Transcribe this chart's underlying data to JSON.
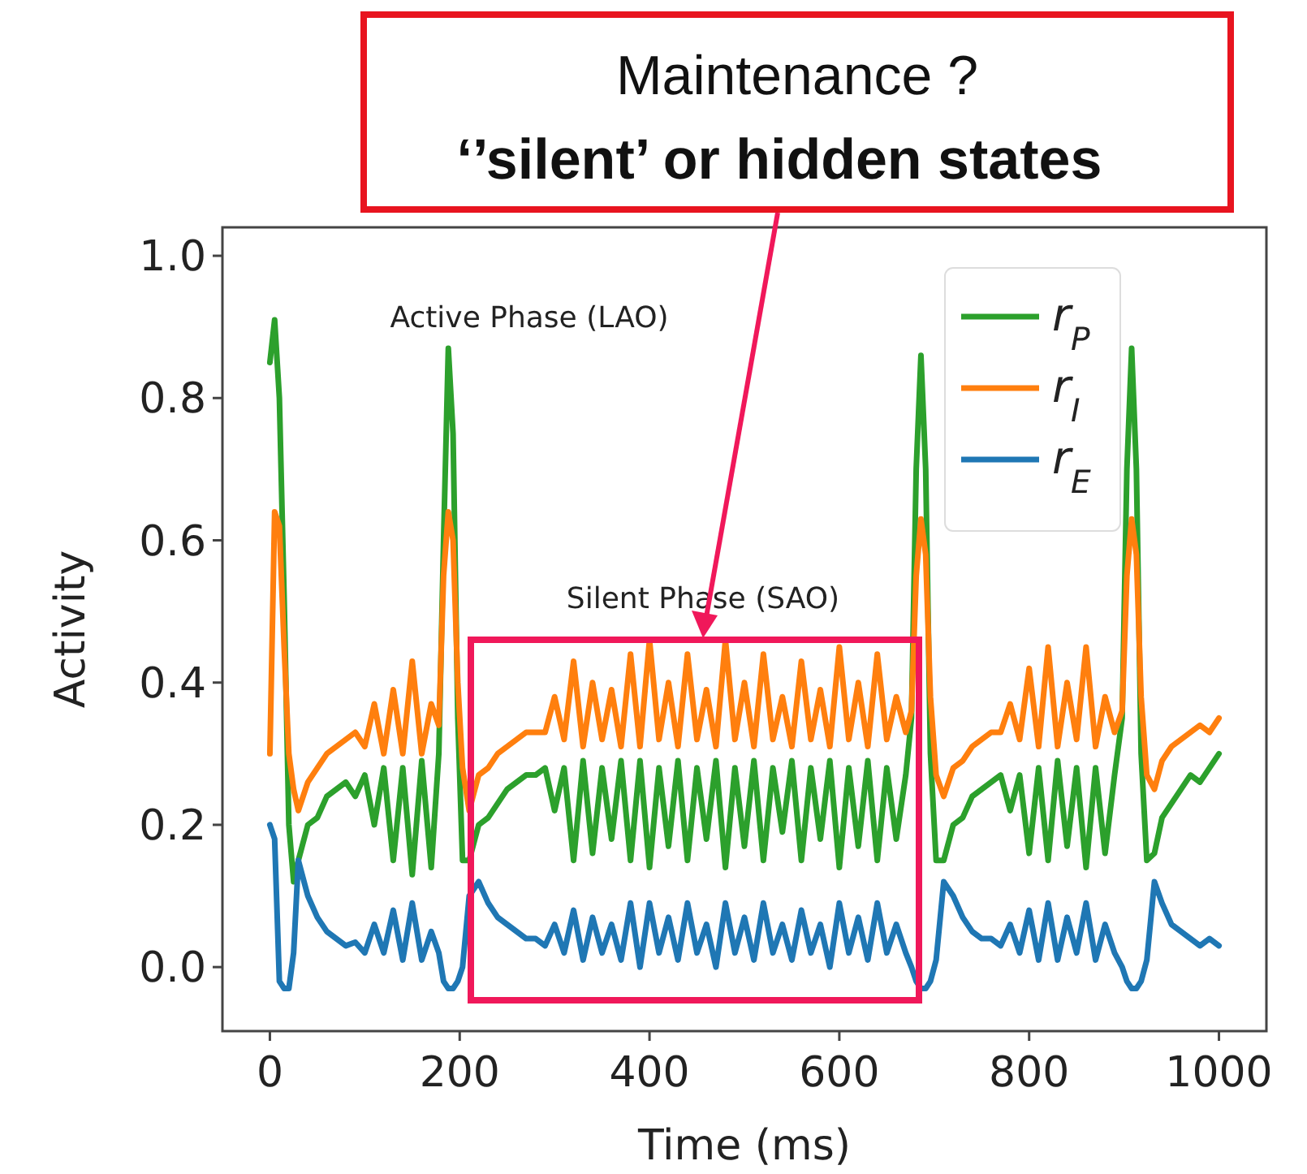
{
  "chart_data": {
    "type": "line",
    "xlabel": "Time (ms)",
    "ylabel": "Activity",
    "x": [
      0,
      5,
      10,
      15,
      20,
      25,
      30,
      40,
      50,
      60,
      70,
      80,
      90,
      100,
      110,
      120,
      130,
      140,
      150,
      160,
      170,
      178,
      183,
      188,
      193,
      198,
      203,
      210,
      220,
      230,
      240,
      250,
      260,
      270,
      280,
      290,
      300,
      310,
      320,
      330,
      340,
      350,
      360,
      370,
      380,
      390,
      400,
      410,
      420,
      430,
      440,
      450,
      460,
      470,
      480,
      490,
      500,
      510,
      520,
      530,
      540,
      550,
      560,
      570,
      580,
      590,
      600,
      610,
      620,
      630,
      640,
      650,
      660,
      670,
      676,
      681,
      686,
      691,
      696,
      702,
      710,
      720,
      730,
      740,
      750,
      760,
      770,
      780,
      790,
      800,
      810,
      820,
      830,
      840,
      850,
      860,
      870,
      880,
      890,
      898,
      903,
      908,
      913,
      918,
      924,
      932,
      940,
      950,
      960,
      970,
      980,
      990,
      1000
    ],
    "xlim": [
      -50,
      1050
    ],
    "xticks": [
      0,
      200,
      400,
      600,
      800,
      1000
    ],
    "ylim": [
      -0.09,
      1.04
    ],
    "yticks": [
      {
        "value": 0,
        "label": "0.0"
      },
      0.2,
      0.4,
      0.6,
      0.8,
      {
        "value": 1,
        "label": "1.0"
      }
    ],
    "legend": "top right",
    "line_style": "solid",
    "series": [
      {
        "name": "r$_{P}$",
        "color": "#2ca02c",
        "values": [
          0.85,
          0.91,
          0.8,
          0.52,
          0.2,
          0.12,
          0.15,
          0.2,
          0.21,
          0.24,
          0.25,
          0.26,
          0.24,
          0.27,
          0.2,
          0.28,
          0.15,
          0.28,
          0.13,
          0.29,
          0.14,
          0.3,
          0.6,
          0.87,
          0.75,
          0.35,
          0.15,
          0.15,
          0.2,
          0.21,
          0.23,
          0.25,
          0.26,
          0.27,
          0.27,
          0.28,
          0.22,
          0.28,
          0.15,
          0.29,
          0.16,
          0.28,
          0.18,
          0.29,
          0.15,
          0.29,
          0.14,
          0.28,
          0.17,
          0.29,
          0.15,
          0.28,
          0.18,
          0.29,
          0.14,
          0.28,
          0.17,
          0.29,
          0.15,
          0.28,
          0.19,
          0.29,
          0.15,
          0.28,
          0.18,
          0.29,
          0.14,
          0.28,
          0.17,
          0.29,
          0.15,
          0.28,
          0.18,
          0.27,
          0.35,
          0.7,
          0.86,
          0.7,
          0.3,
          0.15,
          0.15,
          0.2,
          0.21,
          0.24,
          0.25,
          0.26,
          0.27,
          0.22,
          0.27,
          0.16,
          0.28,
          0.15,
          0.29,
          0.17,
          0.28,
          0.14,
          0.28,
          0.16,
          0.27,
          0.35,
          0.7,
          0.87,
          0.7,
          0.3,
          0.15,
          0.16,
          0.21,
          0.23,
          0.25,
          0.27,
          0.26,
          0.28,
          0.3
        ]
      },
      {
        "name": "r$_{I}$",
        "color": "#ff7f0e",
        "values": [
          0.3,
          0.64,
          0.62,
          0.45,
          0.3,
          0.25,
          0.22,
          0.26,
          0.28,
          0.3,
          0.31,
          0.32,
          0.33,
          0.31,
          0.37,
          0.3,
          0.39,
          0.3,
          0.43,
          0.3,
          0.37,
          0.34,
          0.55,
          0.64,
          0.6,
          0.4,
          0.28,
          0.22,
          0.27,
          0.28,
          0.3,
          0.31,
          0.32,
          0.33,
          0.33,
          0.33,
          0.38,
          0.32,
          0.43,
          0.31,
          0.4,
          0.32,
          0.39,
          0.31,
          0.44,
          0.31,
          0.46,
          0.32,
          0.4,
          0.31,
          0.44,
          0.32,
          0.39,
          0.31,
          0.46,
          0.32,
          0.4,
          0.31,
          0.44,
          0.32,
          0.38,
          0.31,
          0.43,
          0.32,
          0.39,
          0.31,
          0.45,
          0.32,
          0.4,
          0.31,
          0.44,
          0.32,
          0.38,
          0.33,
          0.36,
          0.55,
          0.63,
          0.58,
          0.38,
          0.27,
          0.24,
          0.28,
          0.29,
          0.31,
          0.32,
          0.33,
          0.33,
          0.37,
          0.32,
          0.42,
          0.31,
          0.45,
          0.31,
          0.4,
          0.32,
          0.45,
          0.31,
          0.38,
          0.33,
          0.36,
          0.55,
          0.63,
          0.58,
          0.38,
          0.27,
          0.25,
          0.29,
          0.31,
          0.32,
          0.33,
          0.34,
          0.33,
          0.35
        ]
      },
      {
        "name": "r$_{E}$",
        "color": "#1f77b4",
        "values": [
          0.2,
          0.18,
          -0.02,
          -0.03,
          -0.03,
          0.02,
          0.15,
          0.1,
          0.07,
          0.05,
          0.04,
          0.03,
          0.035,
          0.02,
          0.06,
          0.02,
          0.08,
          0.01,
          0.09,
          0.01,
          0.05,
          0.02,
          -0.02,
          -0.03,
          -0.03,
          -0.02,
          0,
          0.1,
          0.12,
          0.09,
          0.07,
          0.06,
          0.05,
          0.04,
          0.04,
          0.03,
          0.06,
          0.02,
          0.08,
          0.01,
          0.07,
          0.02,
          0.06,
          0.01,
          0.09,
          0,
          0.09,
          0.02,
          0.07,
          0.01,
          0.09,
          0.02,
          0.06,
          0,
          0.09,
          0.02,
          0.07,
          0.01,
          0.09,
          0.02,
          0.06,
          0.01,
          0.08,
          0.02,
          0.06,
          0,
          0.09,
          0.02,
          0.07,
          0.01,
          0.09,
          0.02,
          0.06,
          0.02,
          0,
          -0.02,
          -0.03,
          -0.03,
          -0.02,
          0.01,
          0.12,
          0.1,
          0.07,
          0.05,
          0.04,
          0.04,
          0.03,
          0.06,
          0.02,
          0.08,
          0.01,
          0.09,
          0.01,
          0.07,
          0.02,
          0.09,
          0.01,
          0.06,
          0.02,
          0,
          -0.02,
          -0.03,
          -0.03,
          -0.02,
          0.01,
          0.12,
          0.09,
          0.06,
          0.05,
          0.04,
          0.03,
          0.04,
          0.03
        ]
      }
    ],
    "annotations": [
      "Maintenance ?",
      "‘’silent’ or hidden states",
      "Active Phase (LAO)",
      "Silent Phase (SAO)"
    ]
  }
}
